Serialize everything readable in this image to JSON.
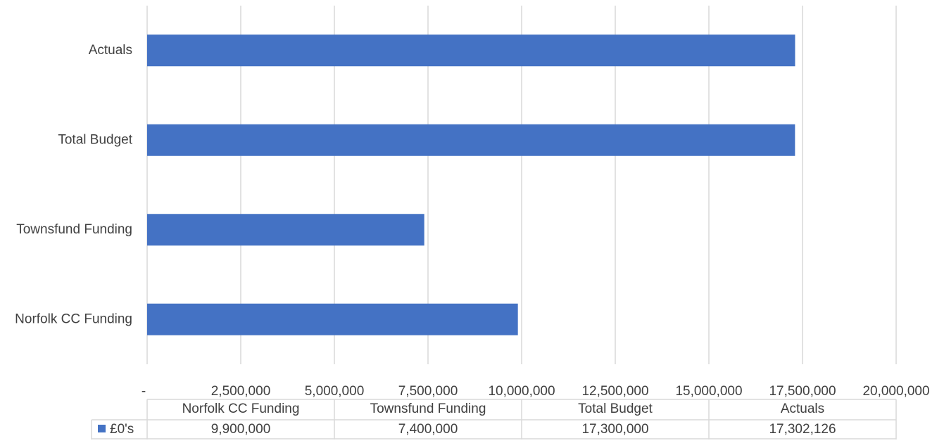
{
  "chart_data": {
    "type": "bar",
    "orientation": "horizontal",
    "categories": [
      "Norfolk CC Funding",
      "Townsfund Funding",
      "Total Budget",
      "Actuals"
    ],
    "series": [
      {
        "name": "£0's",
        "values": [
          9900000,
          7400000,
          17300000,
          17302126
        ],
        "value_labels": [
          "9,900,000",
          "7,400,000",
          "17,300,000",
          "17,302,126"
        ],
        "color": "#4472C4"
      }
    ],
    "xlim": [
      0,
      20000000
    ],
    "x_ticks": [
      0,
      2500000,
      5000000,
      7500000,
      10000000,
      12500000,
      15000000,
      17500000,
      20000000
    ],
    "x_tick_labels": [
      "-",
      "2,500,000",
      "5,000,000",
      "7,500,000",
      "10,000,000",
      "12,500,000",
      "15,000,000",
      "17,500,000",
      "20,000,000"
    ],
    "grid": true,
    "data_table": true,
    "gridline_color": "#d9d9d9"
  }
}
